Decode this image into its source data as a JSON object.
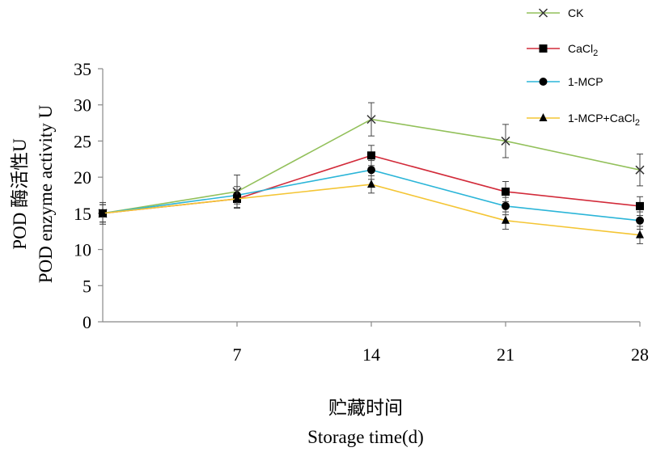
{
  "chart_data": {
    "type": "line",
    "x": [
      0,
      7,
      14,
      21,
      28
    ],
    "xticks": [
      "7",
      "14",
      "21",
      "28"
    ],
    "xlim": [
      0,
      28
    ],
    "ylim": [
      0,
      35
    ],
    "yticks": [
      "0",
      "5",
      "10",
      "15",
      "20",
      "25",
      "30",
      "35"
    ],
    "xlabel_cn": "贮藏时间",
    "xlabel_en": "Storage time(d)",
    "ylabel_cn": "POD 酶活性U",
    "ylabel_en": "POD enzyme activity U",
    "grid": false,
    "legend_position": "top-right",
    "series": [
      {
        "name": "CK",
        "color": "#92c05a",
        "marker": "x",
        "values": [
          15,
          18,
          28,
          25,
          21
        ],
        "errors": [
          1.5,
          2.3,
          2.3,
          2.3,
          2.2
        ]
      },
      {
        "name": "CaCl",
        "name_sub": "2",
        "color": "#d22b3a",
        "marker": "square",
        "values": [
          15,
          17,
          23,
          18,
          16
        ],
        "errors": [
          1.2,
          1.2,
          1.4,
          1.4,
          1.3
        ]
      },
      {
        "name": "1-MCP",
        "color": "#2bb5d8",
        "marker": "circle",
        "values": [
          15,
          17.5,
          21,
          16,
          14
        ],
        "errors": [
          1.2,
          1.2,
          1.3,
          1.2,
          1.2
        ]
      },
      {
        "name": "1-MCP+CaCl",
        "name_sub": "2",
        "color": "#f4c534",
        "marker": "triangle",
        "values": [
          15,
          17,
          19,
          14,
          12
        ],
        "errors": [
          1.2,
          1.2,
          1.2,
          1.2,
          1.2
        ]
      }
    ]
  }
}
